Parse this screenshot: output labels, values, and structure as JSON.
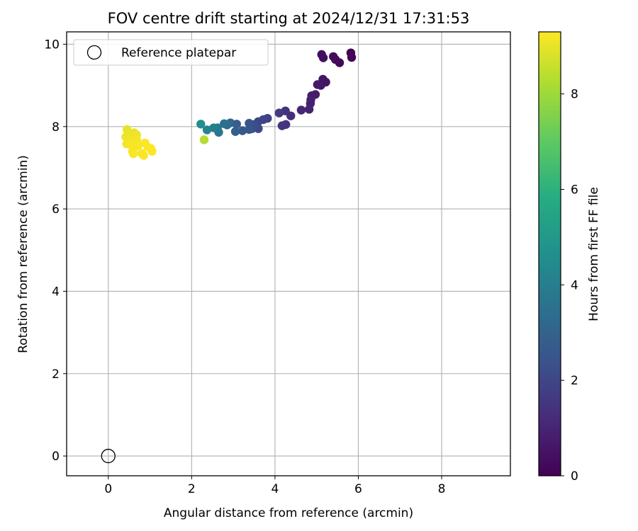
{
  "chart_data": {
    "type": "scatter",
    "title": "FOV centre drift starting at 2024/12/31 17:31:53",
    "xlabel": "Angular distance from reference (arcmin)",
    "ylabel": "Rotation from reference (arcmin)",
    "xlim": [
      -1.0,
      9.65
    ],
    "ylim": [
      -0.48,
      10.3
    ],
    "xticks": [
      0,
      2,
      4,
      6,
      8
    ],
    "yticks": [
      0,
      2,
      4,
      6,
      8,
      10
    ],
    "grid": true,
    "colormap": "viridis",
    "colorbar": {
      "label": "Hours from first FF file",
      "range": [
        0,
        9.3
      ],
      "ticks": [
        0,
        2,
        4,
        6,
        8
      ]
    },
    "legend": {
      "position": "upper-left",
      "entries": [
        "Reference platepar"
      ]
    },
    "reference_point": {
      "name": "Reference platepar",
      "x": 0,
      "y": 0
    },
    "points": [
      {
        "x": 5.82,
        "y": 9.79,
        "c": 0.05
      },
      {
        "x": 5.84,
        "y": 9.68,
        "c": 0.1
      },
      {
        "x": 5.55,
        "y": 9.55,
        "c": 0.2
      },
      {
        "x": 5.45,
        "y": 9.63,
        "c": 0.25
      },
      {
        "x": 5.4,
        "y": 9.7,
        "c": 0.3
      },
      {
        "x": 5.12,
        "y": 9.75,
        "c": 0.35
      },
      {
        "x": 5.16,
        "y": 9.67,
        "c": 0.4
      },
      {
        "x": 5.22,
        "y": 9.08,
        "c": 0.5
      },
      {
        "x": 5.15,
        "y": 9.15,
        "c": 0.55
      },
      {
        "x": 5.1,
        "y": 9.0,
        "c": 0.6
      },
      {
        "x": 5.02,
        "y": 9.02,
        "c": 0.65
      },
      {
        "x": 4.97,
        "y": 8.78,
        "c": 0.75
      },
      {
        "x": 4.88,
        "y": 8.75,
        "c": 0.8
      },
      {
        "x": 4.86,
        "y": 8.65,
        "c": 0.85
      },
      {
        "x": 4.85,
        "y": 8.56,
        "c": 0.9
      },
      {
        "x": 4.82,
        "y": 8.42,
        "c": 0.95
      },
      {
        "x": 4.63,
        "y": 8.4,
        "c": 1.05
      },
      {
        "x": 4.38,
        "y": 8.26,
        "c": 1.25
      },
      {
        "x": 4.25,
        "y": 8.38,
        "c": 1.35
      },
      {
        "x": 4.26,
        "y": 8.05,
        "c": 1.45
      },
      {
        "x": 4.17,
        "y": 8.02,
        "c": 1.5
      },
      {
        "x": 4.1,
        "y": 8.33,
        "c": 1.6
      },
      {
        "x": 3.82,
        "y": 8.2,
        "c": 1.8
      },
      {
        "x": 3.72,
        "y": 8.17,
        "c": 1.9
      },
      {
        "x": 3.6,
        "y": 8.12,
        "c": 2.0
      },
      {
        "x": 3.6,
        "y": 7.95,
        "c": 2.1
      },
      {
        "x": 3.5,
        "y": 8.05,
        "c": 2.2
      },
      {
        "x": 3.45,
        "y": 7.95,
        "c": 2.3
      },
      {
        "x": 3.38,
        "y": 8.08,
        "c": 2.4
      },
      {
        "x": 3.38,
        "y": 7.93,
        "c": 2.5
      },
      {
        "x": 3.22,
        "y": 7.9,
        "c": 2.6
      },
      {
        "x": 3.08,
        "y": 8.06,
        "c": 2.8
      },
      {
        "x": 3.05,
        "y": 7.88,
        "c": 2.9
      },
      {
        "x": 2.93,
        "y": 8.09,
        "c": 3.1
      },
      {
        "x": 2.85,
        "y": 8.04,
        "c": 3.3
      },
      {
        "x": 2.78,
        "y": 8.07,
        "c": 3.5
      },
      {
        "x": 2.65,
        "y": 7.86,
        "c": 3.7
      },
      {
        "x": 2.62,
        "y": 7.97,
        "c": 3.8
      },
      {
        "x": 2.53,
        "y": 7.97,
        "c": 4.0
      },
      {
        "x": 2.37,
        "y": 7.92,
        "c": 4.2
      },
      {
        "x": 2.22,
        "y": 8.06,
        "c": 4.6
      },
      {
        "x": 2.3,
        "y": 7.68,
        "c": 8.3
      },
      {
        "x": 0.45,
        "y": 7.93,
        "c": 9.0
      },
      {
        "x": 0.55,
        "y": 7.82,
        "c": 9.05
      },
      {
        "x": 0.62,
        "y": 7.85,
        "c": 9.05
      },
      {
        "x": 0.68,
        "y": 7.8,
        "c": 9.1
      },
      {
        "x": 0.42,
        "y": 7.75,
        "c": 9.1
      },
      {
        "x": 0.5,
        "y": 7.7,
        "c": 9.1
      },
      {
        "x": 0.58,
        "y": 7.65,
        "c": 9.15
      },
      {
        "x": 0.68,
        "y": 7.68,
        "c": 9.15
      },
      {
        "x": 0.44,
        "y": 7.58,
        "c": 9.15
      },
      {
        "x": 0.55,
        "y": 7.55,
        "c": 9.2
      },
      {
        "x": 0.64,
        "y": 7.5,
        "c": 9.2
      },
      {
        "x": 0.72,
        "y": 7.55,
        "c": 9.2
      },
      {
        "x": 0.58,
        "y": 7.4,
        "c": 9.2
      },
      {
        "x": 0.6,
        "y": 7.34,
        "c": 9.25
      },
      {
        "x": 0.8,
        "y": 7.35,
        "c": 9.25
      },
      {
        "x": 0.85,
        "y": 7.3,
        "c": 9.25
      },
      {
        "x": 0.88,
        "y": 7.6,
        "c": 9.25
      },
      {
        "x": 0.95,
        "y": 7.5,
        "c": 9.3
      },
      {
        "x": 1.02,
        "y": 7.47,
        "c": 9.3
      },
      {
        "x": 1.05,
        "y": 7.4,
        "c": 9.3
      }
    ]
  }
}
